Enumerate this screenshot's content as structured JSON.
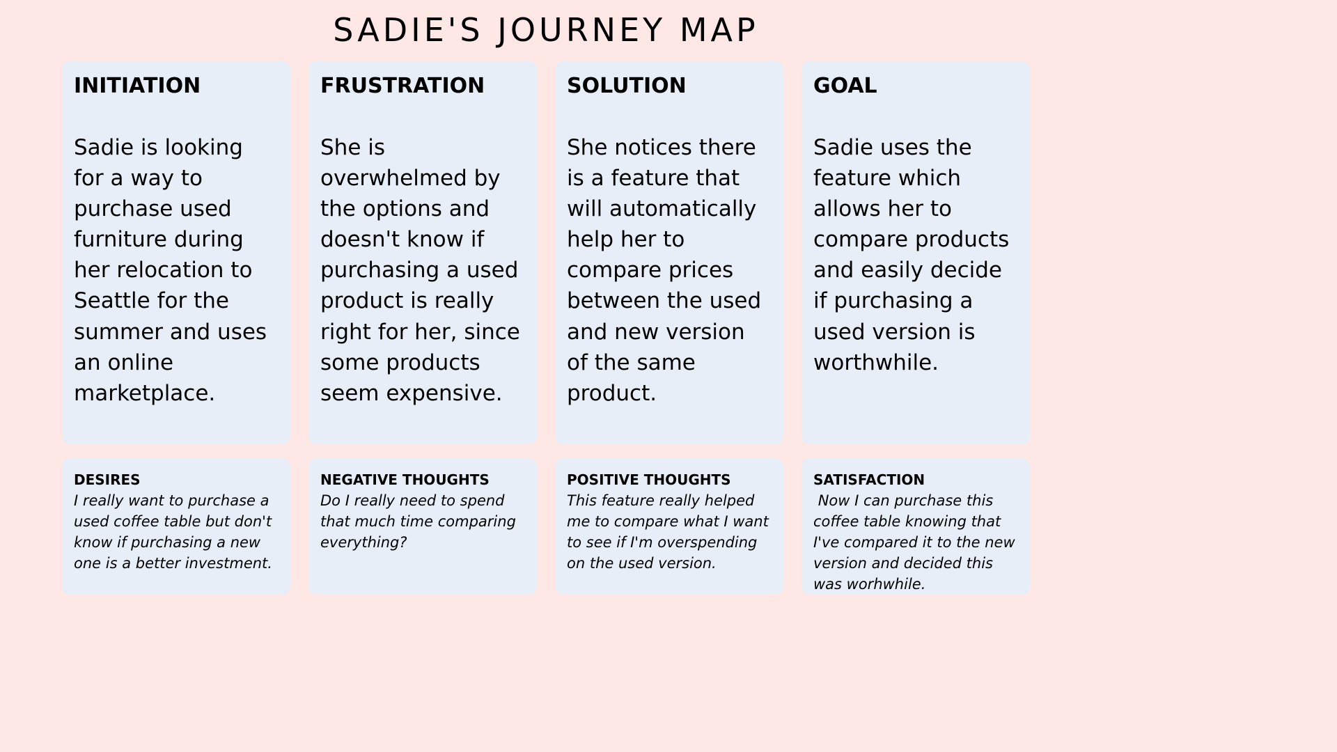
{
  "title": "SADIE'S JOURNEY MAP",
  "stages": [
    {
      "heading": "INITIATION",
      "text": "Sadie is looking for a way to purchase used furniture during her relocation to Seattle for the summer and uses an online marketplace."
    },
    {
      "heading": "FRUSTRATION",
      "text": "She is overwhelmed by the options and doesn't know if purchasing a used product is really right for her, since some products seem expensive."
    },
    {
      "heading": "SOLUTION",
      "text": "She notices there is a feature that will automatically help her to compare prices between the used and new version of the same product."
    },
    {
      "heading": "GOAL",
      "text": "Sadie uses the feature which allows her to compare products and easily decide if purchasing a used version is worthwhile."
    }
  ],
  "notes": [
    {
      "heading": "DESIRES",
      "text": "I really want to purchase a used coffee table but don't know if purchasing a new one is a better investment."
    },
    {
      "heading": "NEGATIVE THOUGHTS",
      "text": "Do I really need to spend that much time comparing everything?"
    },
    {
      "heading": "POSITIVE THOUGHTS",
      "text": "This feature really helped me to compare what I want to see if I'm overspending on the used version."
    },
    {
      "heading": "SATISFACTION",
      "text": " Now I can purchase this coffee table knowing that I've compared it to the new version and decided this was worhwhile."
    }
  ]
}
